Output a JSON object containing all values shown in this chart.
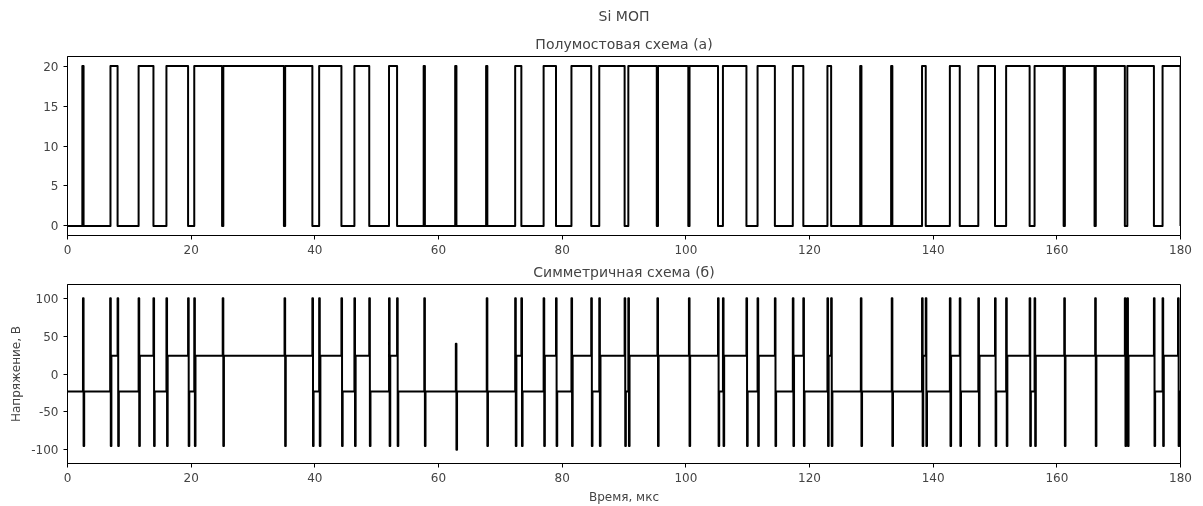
{
  "chart_data": [
    {
      "type": "step",
      "title": "Si МОП",
      "subtitle": "Полумостовая схема (а)",
      "xlim": [
        0,
        180
      ],
      "xticks": [
        0,
        20,
        40,
        60,
        80,
        100,
        120,
        140,
        160,
        180
      ],
      "ylim": [
        -1.2,
        21.2
      ],
      "yticks": [
        0,
        5,
        10,
        15,
        20
      ],
      "grid": false,
      "x": [
        0,
        2.4,
        2.6,
        6.95,
        8.1,
        11.5,
        13.9,
        16.0,
        19.5,
        20.5,
        25.0,
        25.2,
        35.0,
        35.2,
        39.6,
        40.7,
        44.3,
        46.4,
        48.8,
        52.0,
        53.3,
        57.6,
        57.8,
        62.7,
        62.9,
        67.7,
        67.9,
        72.4,
        73.4,
        77.0,
        79.0,
        81.5,
        84.7,
        86.0,
        90.1,
        90.7,
        95.3,
        95.5,
        100.4,
        100.6,
        105.2,
        106.0,
        109.8,
        111.6,
        114.4,
        117.3,
        119.0,
        122.9,
        123.5,
        128.2,
        128.4,
        133.2,
        133.4,
        138.2,
        138.8,
        142.7,
        144.3,
        147.3,
        150.0,
        151.8,
        155.6,
        156.4,
        161.1,
        161.3,
        166.1,
        166.3,
        171.0,
        171.4,
        175.7,
        177.1,
        180.0
      ],
      "series": [
        {
          "color": "#000000",
          "values": [
            0,
            20,
            0,
            20,
            0,
            20,
            0,
            20,
            0,
            20,
            0,
            20,
            0,
            20,
            0,
            20,
            0,
            20,
            0,
            20,
            0,
            20,
            0,
            20,
            0,
            20,
            0,
            20,
            0,
            20,
            0,
            20,
            0,
            20,
            0,
            20,
            0,
            20,
            0,
            20,
            0,
            20,
            0,
            20,
            0,
            20,
            0,
            20,
            0,
            20,
            0,
            20,
            0,
            20,
            0,
            20,
            0,
            20,
            0,
            20,
            0,
            20,
            0,
            20,
            0,
            20,
            0,
            20,
            0,
            20,
            0
          ]
        }
      ]
    },
    {
      "type": "step",
      "title": "Симметричная схема (б)",
      "xlabel": "Время, мкс",
      "ylabel": "Напряжение, В",
      "xlim": [
        0,
        180
      ],
      "xticks": [
        0,
        20,
        40,
        60,
        80,
        100,
        120,
        140,
        160,
        180
      ],
      "ylim": [
        -118,
        118
      ],
      "yticks": [
        -100,
        -50,
        0,
        50,
        100
      ],
      "grid": false,
      "x": [
        0,
        2.5,
        2.6,
        2.7,
        6.9,
        7.0,
        7.1,
        8.1,
        8.2,
        8.3,
        11.5,
        11.6,
        11.7,
        13.9,
        14.0,
        14.1,
        16.0,
        16.1,
        16.2,
        19.5,
        19.6,
        19.7,
        20.5,
        20.6,
        20.7,
        25.1,
        25.2,
        25.3,
        35.1,
        35.2,
        35.3,
        39.6,
        39.7,
        39.8,
        40.7,
        40.8,
        40.9,
        44.3,
        44.4,
        44.5,
        46.4,
        46.5,
        46.6,
        48.8,
        48.9,
        49.0,
        52.0,
        52.1,
        52.2,
        53.3,
        53.4,
        53.5,
        57.7,
        57.8,
        57.9,
        62.8,
        62.9,
        63.0,
        67.8,
        67.9,
        68.0,
        72.4,
        72.5,
        72.6,
        73.4,
        73.5,
        73.6,
        77.0,
        77.1,
        77.2,
        79.0,
        79.1,
        79.2,
        81.5,
        81.6,
        81.7,
        84.7,
        84.8,
        84.9,
        86.0,
        86.1,
        86.2,
        90.1,
        90.2,
        90.3,
        90.7,
        90.8,
        90.9,
        95.4,
        95.5,
        95.6,
        100.5,
        100.6,
        100.7,
        105.2,
        105.3,
        105.4,
        106.0,
        106.1,
        106.2,
        109.8,
        109.9,
        110.0,
        111.6,
        111.7,
        111.8,
        114.4,
        114.5,
        114.6,
        117.3,
        117.4,
        117.5,
        119.0,
        119.1,
        119.2,
        122.9,
        123.0,
        123.1,
        123.5,
        123.6,
        123.7,
        128.3,
        128.4,
        128.5,
        133.3,
        133.4,
        133.5,
        138.2,
        138.3,
        138.4,
        138.8,
        138.9,
        139.0,
        142.7,
        142.8,
        142.9,
        144.3,
        144.4,
        144.5,
        147.3,
        147.4,
        147.5,
        150.0,
        150.1,
        150.2,
        151.8,
        151.9,
        152.0,
        155.6,
        155.7,
        155.8,
        156.4,
        156.5,
        156.6,
        161.2,
        161.3,
        161.4,
        166.2,
        166.3,
        166.4,
        171.0,
        171.1,
        171.2,
        171.4,
        171.5,
        171.6,
        175.7,
        175.8,
        175.9,
        177.1,
        177.2,
        177.3,
        179.6,
        179.7,
        179.8,
        180
      ],
      "series": [
        {
          "color": "#000000",
          "values": [
            -23,
            100,
            -95,
            -23,
            100,
            -95,
            24,
            100,
            -95,
            -23,
            100,
            -95,
            24,
            100,
            -95,
            -23,
            100,
            -95,
            24,
            100,
            -95,
            -23,
            100,
            -95,
            24,
            100,
            -95,
            24,
            100,
            -95,
            24,
            100,
            -95,
            -23,
            100,
            -95,
            24,
            100,
            -95,
            -23,
            100,
            -95,
            24,
            100,
            -95,
            -23,
            100,
            -95,
            24,
            100,
            -95,
            -23,
            100,
            -95,
            -23,
            40,
            -100,
            -23,
            100,
            -95,
            -23,
            100,
            -95,
            24,
            100,
            -95,
            -23,
            100,
            -95,
            24,
            100,
            -95,
            -23,
            100,
            -95,
            24,
            100,
            -95,
            -23,
            100,
            -95,
            24,
            100,
            -95,
            -23,
            100,
            -95,
            24,
            100,
            -95,
            24,
            100,
            -95,
            24,
            100,
            -95,
            -23,
            100,
            -95,
            24,
            100,
            -95,
            -23,
            100,
            -95,
            24,
            100,
            -95,
            -23,
            100,
            -95,
            24,
            100,
            -95,
            -23,
            100,
            -95,
            24,
            100,
            -95,
            -23,
            100,
            -95,
            -23,
            100,
            -95,
            -23,
            100,
            -95,
            24,
            100,
            -95,
            -23,
            100,
            -95,
            24,
            100,
            -95,
            -23,
            100,
            -95,
            24,
            100,
            -95,
            -23,
            100,
            -95,
            24,
            100,
            -95,
            -23,
            100,
            -95,
            24,
            100,
            -95,
            24,
            100,
            -95,
            24,
            100,
            -95,
            -23,
            100,
            -95,
            24,
            100,
            -95,
            -23,
            100,
            -95,
            24,
            100,
            -95,
            -23,
            -23
          ]
        }
      ]
    }
  ]
}
